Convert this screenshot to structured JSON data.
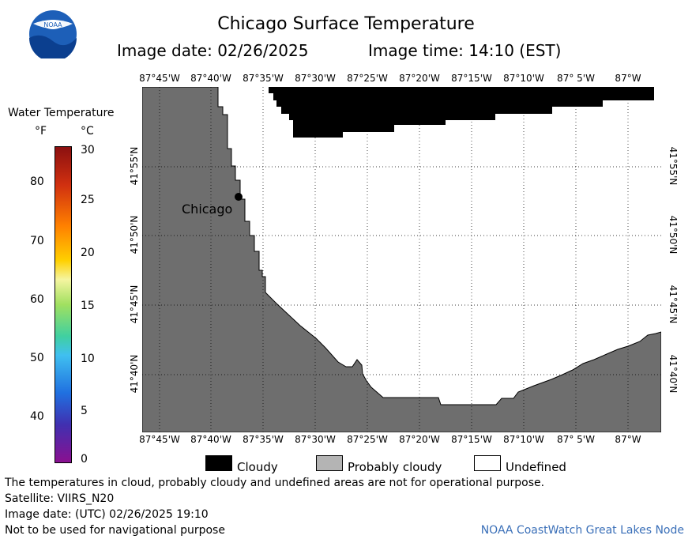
{
  "title": "Chicago Surface Temperature",
  "image_date": "Image date: 02/26/2025",
  "image_time": "Image time: 14:10 (EST)",
  "logo_text": "NOAA",
  "colorbar": {
    "title": "Water Temperature",
    "unit_f": "°F",
    "unit_c": "°C",
    "f_ticks": [
      "80",
      "70",
      "60",
      "50",
      "40"
    ],
    "c_ticks": [
      "30",
      "25",
      "20",
      "15",
      "10",
      "5",
      "0"
    ]
  },
  "map": {
    "lon_labels": [
      "87°45'W",
      "87°40'W",
      "87°35'W",
      "87°30'W",
      "87°25'W",
      "87°20'W",
      "87°15'W",
      "87°10'W",
      "87° 5'W",
      "87°W"
    ],
    "lat_labels": [
      "41°55'N",
      "41°50'N",
      "41°45'N",
      "41°40'N"
    ],
    "city_label": "Chicago",
    "colors": {
      "land": "#6e6e6e",
      "cloudy": "#000000",
      "undefined": "#ffffff",
      "grid": "#000000"
    }
  },
  "legend": {
    "cloudy": "Cloudy",
    "probably_cloudy": "Probably cloudy",
    "undefined": "Undefined"
  },
  "notes": {
    "disclaimer": "The temperatures in cloud, probably cloudy and undefined areas are not for operational purpose.",
    "satellite": "Satellite: VIIRS_N20",
    "utc_date": "Image date: (UTC) 02/26/2025  19:10",
    "nav": "Not to be used for navigational purpose"
  },
  "credit": "NOAA CoastWatch Great Lakes Node"
}
